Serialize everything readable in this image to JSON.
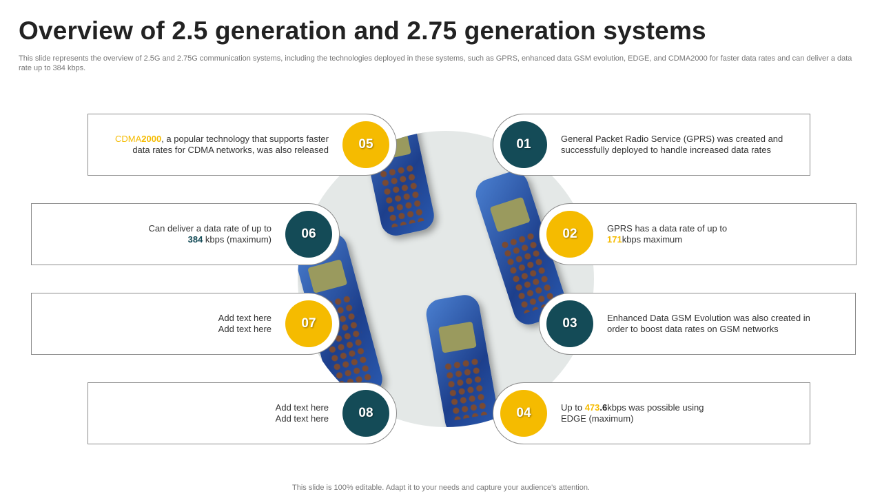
{
  "title": "Overview of 2.5 generation and 2.75 generation systems",
  "subtitle": "This slide represents the overview of 2.5G and 2.75G communication systems, including the technologies deployed in these systems, such as GPRS, enhanced data GSM evolution, EDGE, and CDMA2000 for faster data rates and can deliver a data rate up to 384 kbps.",
  "footer": "This slide is 100% editable. Adapt it to your needs and capture your audience's attention.",
  "colors": {
    "yellow": "#f5bb00",
    "teal": "#144b57",
    "text": "#333333"
  },
  "items": [
    {
      "number": "01",
      "side": "right",
      "color": "teal",
      "lines": [
        [
          {
            "text": "General Packet Radio Service (GPRS) was created and"
          }
        ],
        [
          {
            "text": "successfully deployed to handle increased data rates"
          }
        ]
      ]
    },
    {
      "number": "02",
      "side": "right",
      "color": "yellow",
      "lines": [
        [
          {
            "text": "GPRS has a data rate of up to"
          }
        ],
        [
          {
            "text": "171",
            "style": "yellow-bold"
          },
          {
            "text": "kbps maximum"
          }
        ]
      ]
    },
    {
      "number": "03",
      "side": "right",
      "color": "teal",
      "lines": [
        [
          {
            "text": "Enhanced Data GSM Evolution was also created in"
          }
        ],
        [
          {
            "text": "order to boost data rates on GSM networks"
          }
        ]
      ]
    },
    {
      "number": "04",
      "side": "right",
      "color": "yellow",
      "lines": [
        [
          {
            "text": "Up to "
          },
          {
            "text": "473",
            "style": "yellow-bold"
          },
          {
            "text": ".6",
            "style": "bold"
          },
          {
            "text": "kbps was possible using"
          }
        ],
        [
          {
            "text": "EDGE (maximum)"
          }
        ]
      ]
    },
    {
      "number": "05",
      "side": "left",
      "color": "yellow",
      "lines": [
        [
          {
            "text": "CDMA",
            "style": "yellow"
          },
          {
            "text": "2000",
            "style": "yellow-bold"
          },
          {
            "text": ", a popular technology that supports faster"
          }
        ],
        [
          {
            "text": "data rates for CDMA networks, was also released"
          }
        ]
      ]
    },
    {
      "number": "06",
      "side": "left",
      "color": "teal",
      "lines": [
        [
          {
            "text": "Can deliver a data rate of up to"
          }
        ],
        [
          {
            "text": "384",
            "style": "teal-bold"
          },
          {
            "text": " kbps (maximum)"
          }
        ]
      ]
    },
    {
      "number": "07",
      "side": "left",
      "color": "yellow",
      "lines": [
        [
          {
            "text": "Add text here"
          }
        ],
        [
          {
            "text": "Add text here"
          }
        ]
      ]
    },
    {
      "number": "08",
      "side": "left",
      "color": "teal",
      "lines": [
        [
          {
            "text": "Add text here"
          }
        ],
        [
          {
            "text": "Add text here"
          }
        ]
      ]
    }
  ]
}
